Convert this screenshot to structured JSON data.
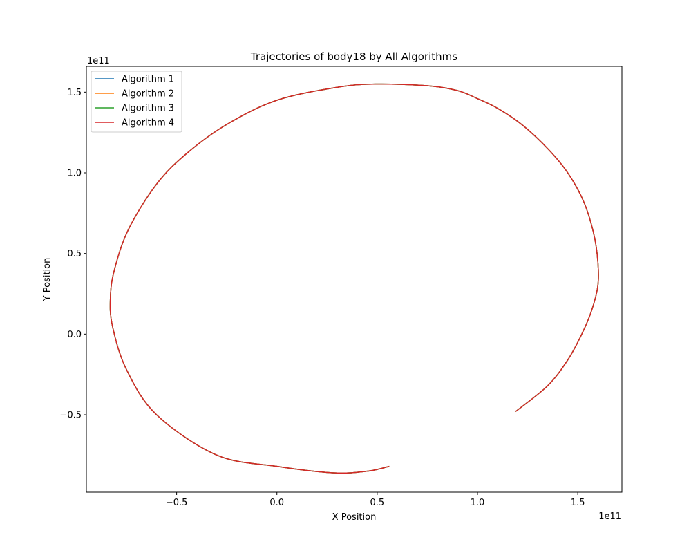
{
  "chart_data": {
    "type": "line",
    "title": "Trajectories of body18 by All Algorithms",
    "xlabel": "X Position",
    "ylabel": "Y Position",
    "x_offset_text": "1e11",
    "y_offset_text": "1e11",
    "xlim": [
      -0.95,
      1.72
    ],
    "ylim": [
      -0.98,
      1.66
    ],
    "x_ticks": [
      {
        "value": -0.5,
        "label": "−0.5"
      },
      {
        "value": 0.0,
        "label": "0.0"
      },
      {
        "value": 0.5,
        "label": "0.5"
      },
      {
        "value": 1.0,
        "label": "1.0"
      },
      {
        "value": 1.5,
        "label": "1.5"
      }
    ],
    "y_ticks": [
      {
        "value": -0.5,
        "label": "−0.5"
      },
      {
        "value": 0.0,
        "label": "0.0"
      },
      {
        "value": 0.5,
        "label": "0.5"
      },
      {
        "value": 1.0,
        "label": "1.0"
      },
      {
        "value": 1.5,
        "label": "1.5"
      }
    ],
    "grid": false,
    "legend_position": "top-left",
    "series": [
      {
        "name": "Algorithm 1",
        "color": "#1f77b4"
      },
      {
        "name": "Algorithm 2",
        "color": "#ff7f0e"
      },
      {
        "name": "Algorithm 3",
        "color": "#2ca02c"
      },
      {
        "name": "Algorithm 4",
        "color": "#d62728"
      }
    ],
    "trajectory": {
      "x": [
        1.19,
        1.35,
        1.45,
        1.52,
        1.57,
        1.6,
        1.6,
        1.58,
        1.53,
        1.45,
        1.35,
        1.22,
        1.1,
        1.0,
        0.9,
        0.75,
        0.49,
        0.3,
        0.0,
        -0.25,
        -0.45,
        -0.6,
        -0.74,
        -0.81,
        -0.83,
        -0.82,
        -0.75,
        -0.6,
        -0.3,
        0.0,
        0.28,
        0.45,
        0.56
      ],
      "y": [
        -0.48,
        -0.32,
        -0.16,
        0.0,
        0.15,
        0.3,
        0.45,
        0.62,
        0.82,
        1.0,
        1.15,
        1.3,
        1.4,
        1.46,
        1.51,
        1.54,
        1.55,
        1.53,
        1.45,
        1.3,
        1.12,
        0.93,
        0.65,
        0.4,
        0.23,
        0.05,
        -0.22,
        -0.5,
        -0.75,
        -0.82,
        -0.86,
        -0.85,
        -0.82
      ]
    }
  }
}
